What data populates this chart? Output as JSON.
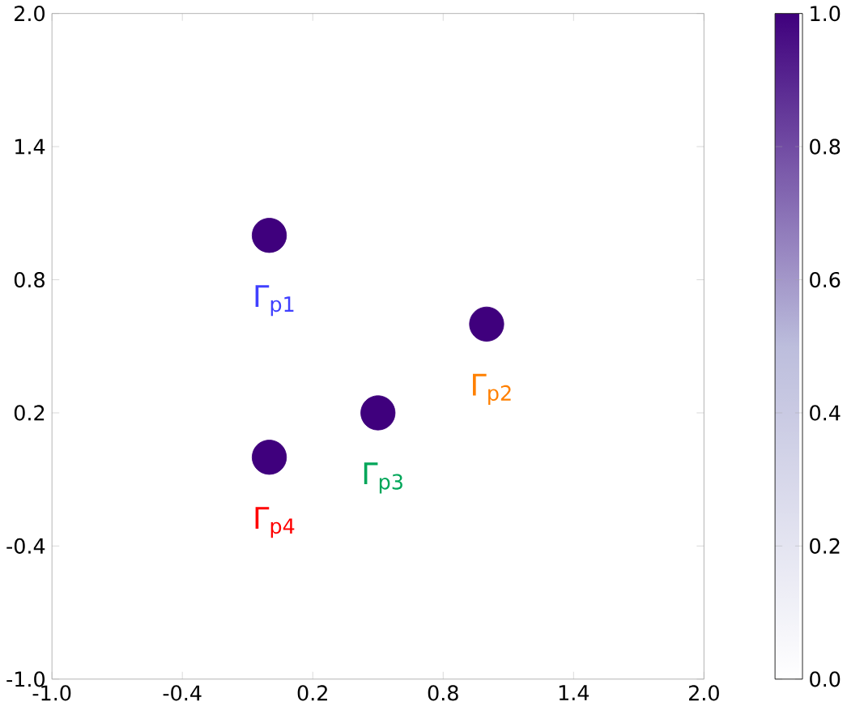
{
  "chart_data": {
    "type": "scatter",
    "x": [
      0,
      1,
      0.5,
      0
    ],
    "values": [
      1,
      0.6,
      0.2,
      0
    ],
    "cvalues": [
      1,
      1,
      1,
      1
    ],
    "marker": "circle",
    "xlim": [
      -1,
      2
    ],
    "ylim": [
      -1,
      2
    ],
    "xticks": [
      {
        "value": -1,
        "label": "-1.0"
      },
      -0.4,
      0.2,
      0.8,
      1.4,
      {
        "value": 2,
        "label": "2.0"
      }
    ],
    "yticks": [
      {
        "value": -1,
        "label": "-1.0"
      },
      -0.4,
      0.2,
      0.8,
      1.4,
      {
        "value": 2,
        "label": "2.0"
      }
    ],
    "clim": [
      0,
      1
    ],
    "cticks": [
      {
        "value": 0,
        "label": "0.0"
      },
      0.2,
      0.4,
      0.6,
      0.8,
      {
        "value": 1,
        "label": "1.0"
      }
    ],
    "annotations": [
      {
        "text": "Γ$_{p1}$",
        "x": 0,
        "y": 1
      },
      {
        "text": "Γ$_{p2}$",
        "x": 1,
        "y": 0.6
      },
      {
        "text": "Γ$_{p3}$",
        "x": 0.5,
        "y": 0.2
      },
      {
        "text": "Γ$_{p4}$",
        "x": 0,
        "y": 0
      }
    ]
  }
}
